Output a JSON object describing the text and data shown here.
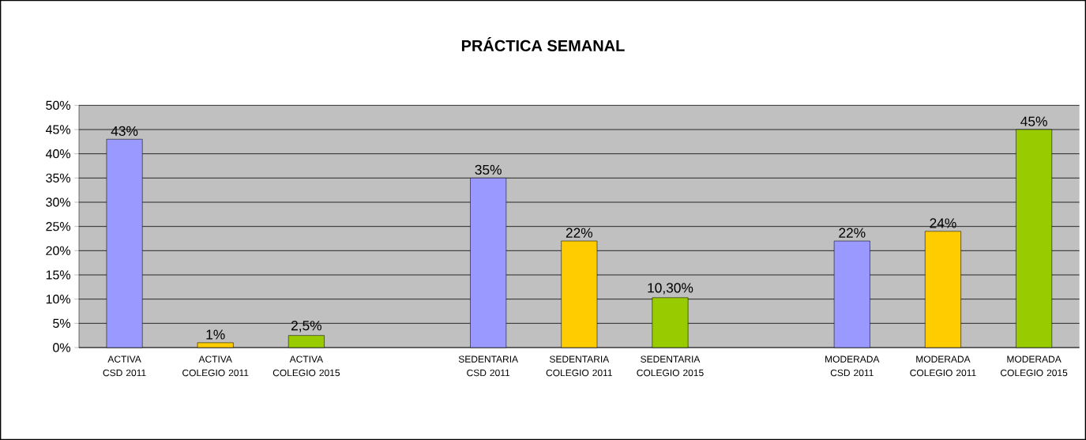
{
  "chart_data": {
    "type": "bar",
    "title": "PRÁCTICA SEMANAL",
    "categories": [
      "ACTIVA CSD 2011",
      "ACTIVA COLEGIO 2011",
      "ACTIVA COLEGIO 2015",
      null,
      "SEDENTARIA CSD 2011",
      "SEDENTARIA COLEGIO 2011",
      "SEDENTARIA COLEGIO 2015",
      null,
      "MODERADA CSD 2011",
      "MODERADA COLEGIO 2011",
      "MODERADA COLEGIO 2015"
    ],
    "values": [
      43,
      1,
      2.5,
      null,
      35,
      22,
      10.3,
      null,
      22,
      24,
      45
    ],
    "colors": [
      "#9999ff",
      "#ffcc00",
      "#99cc00",
      null,
      "#9999ff",
      "#ffcc00",
      "#99cc00",
      null,
      "#9999ff",
      "#ffcc00",
      "#99cc00"
    ],
    "value_labels": [
      "43%",
      "1%",
      "2,5%",
      null,
      "35%",
      "22%",
      "10,30%",
      null,
      "22%",
      "24%",
      "45%"
    ],
    "ylim": [
      0,
      50
    ],
    "yticks": [
      {
        "value": 0,
        "label": "0%"
      },
      {
        "value": 5,
        "label": "5%"
      },
      {
        "value": 10,
        "label": "10%"
      },
      {
        "value": 15,
        "label": "15%"
      },
      {
        "value": 20,
        "label": "20%"
      },
      {
        "value": 25,
        "label": "25%"
      },
      {
        "value": 30,
        "label": "30%"
      },
      {
        "value": 35,
        "label": "35%"
      },
      {
        "value": 40,
        "label": "40%"
      },
      {
        "value": 45,
        "label": "45%"
      },
      {
        "value": 50,
        "label": "50%"
      }
    ],
    "grid": "y"
  }
}
